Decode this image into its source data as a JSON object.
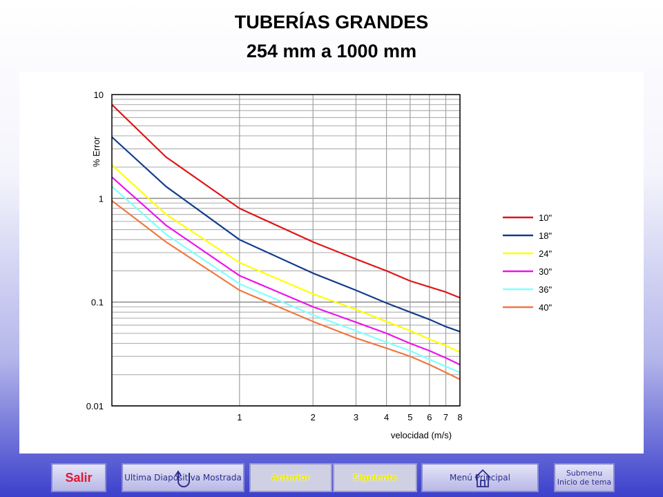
{
  "page": {
    "title_line1": "TUBERÍAS GRANDES",
    "title_line2": "254 mm a 1000 mm"
  },
  "navigation": {
    "salir": "Salir",
    "ultima": "Ultima Diapositiva Mostrada",
    "anterior": "Anterior",
    "siguiente": "Siguiente",
    "menu_principal": "Menú Principal",
    "submenu_line1": "Submenu",
    "submenu_line2": "Inicio de tema"
  },
  "chart_data": {
    "type": "line",
    "xlabel": "velocidad (m/s)",
    "ylabel": "% Error",
    "x_scale": "log",
    "y_scale": "log",
    "xlim": [
      0.3,
      8
    ],
    "ylim": [
      0.01,
      10
    ],
    "x_ticks": [
      1,
      2,
      3,
      4,
      5,
      6,
      7,
      8
    ],
    "y_ticks": [
      {
        "value": 10,
        "label": "10"
      },
      {
        "value": 1,
        "label": "1"
      },
      {
        "value": 0.1,
        "label": "0.1"
      },
      {
        "value": 0.01,
        "label": "0.01"
      }
    ],
    "grid": true,
    "legend_position": "right",
    "series": [
      {
        "name": "10\"",
        "color": "#e01414",
        "x": [
          0.3,
          0.5,
          1,
          2,
          3,
          4,
          5,
          6,
          7,
          8
        ],
        "y": [
          8,
          2.5,
          0.8,
          0.38,
          0.26,
          0.2,
          0.16,
          0.14,
          0.125,
          0.11
        ]
      },
      {
        "name": "18\"",
        "color": "#123c8c",
        "x": [
          0.3,
          0.5,
          1,
          2,
          3,
          4,
          5,
          6,
          7,
          8
        ],
        "y": [
          3.9,
          1.3,
          0.4,
          0.19,
          0.13,
          0.098,
          0.08,
          0.068,
          0.058,
          0.052
        ]
      },
      {
        "name": "24\"",
        "color": "#ffff00",
        "x": [
          0.3,
          0.5,
          1,
          2,
          3,
          4,
          5,
          6,
          7,
          8
        ],
        "y": [
          2.1,
          0.7,
          0.24,
          0.12,
          0.085,
          0.065,
          0.053,
          0.044,
          0.038,
          0.033
        ]
      },
      {
        "name": "30\"",
        "color": "#ee10ee",
        "x": [
          0.3,
          0.5,
          1,
          2,
          3,
          4,
          5,
          6,
          7,
          8
        ],
        "y": [
          1.6,
          0.55,
          0.18,
          0.09,
          0.064,
          0.05,
          0.04,
          0.034,
          0.029,
          0.025
        ]
      },
      {
        "name": "36\"",
        "color": "#80ffff",
        "x": [
          0.3,
          0.5,
          1,
          2,
          3,
          4,
          5,
          6,
          7,
          8
        ],
        "y": [
          1.3,
          0.45,
          0.15,
          0.075,
          0.053,
          0.041,
          0.034,
          0.028,
          0.024,
          0.021
        ]
      },
      {
        "name": "40\"",
        "color": "#f07840",
        "x": [
          0.3,
          0.5,
          1,
          2,
          3,
          4,
          5,
          6,
          7,
          8
        ],
        "y": [
          0.95,
          0.38,
          0.13,
          0.065,
          0.045,
          0.036,
          0.03,
          0.025,
          0.021,
          0.018
        ]
      }
    ]
  }
}
